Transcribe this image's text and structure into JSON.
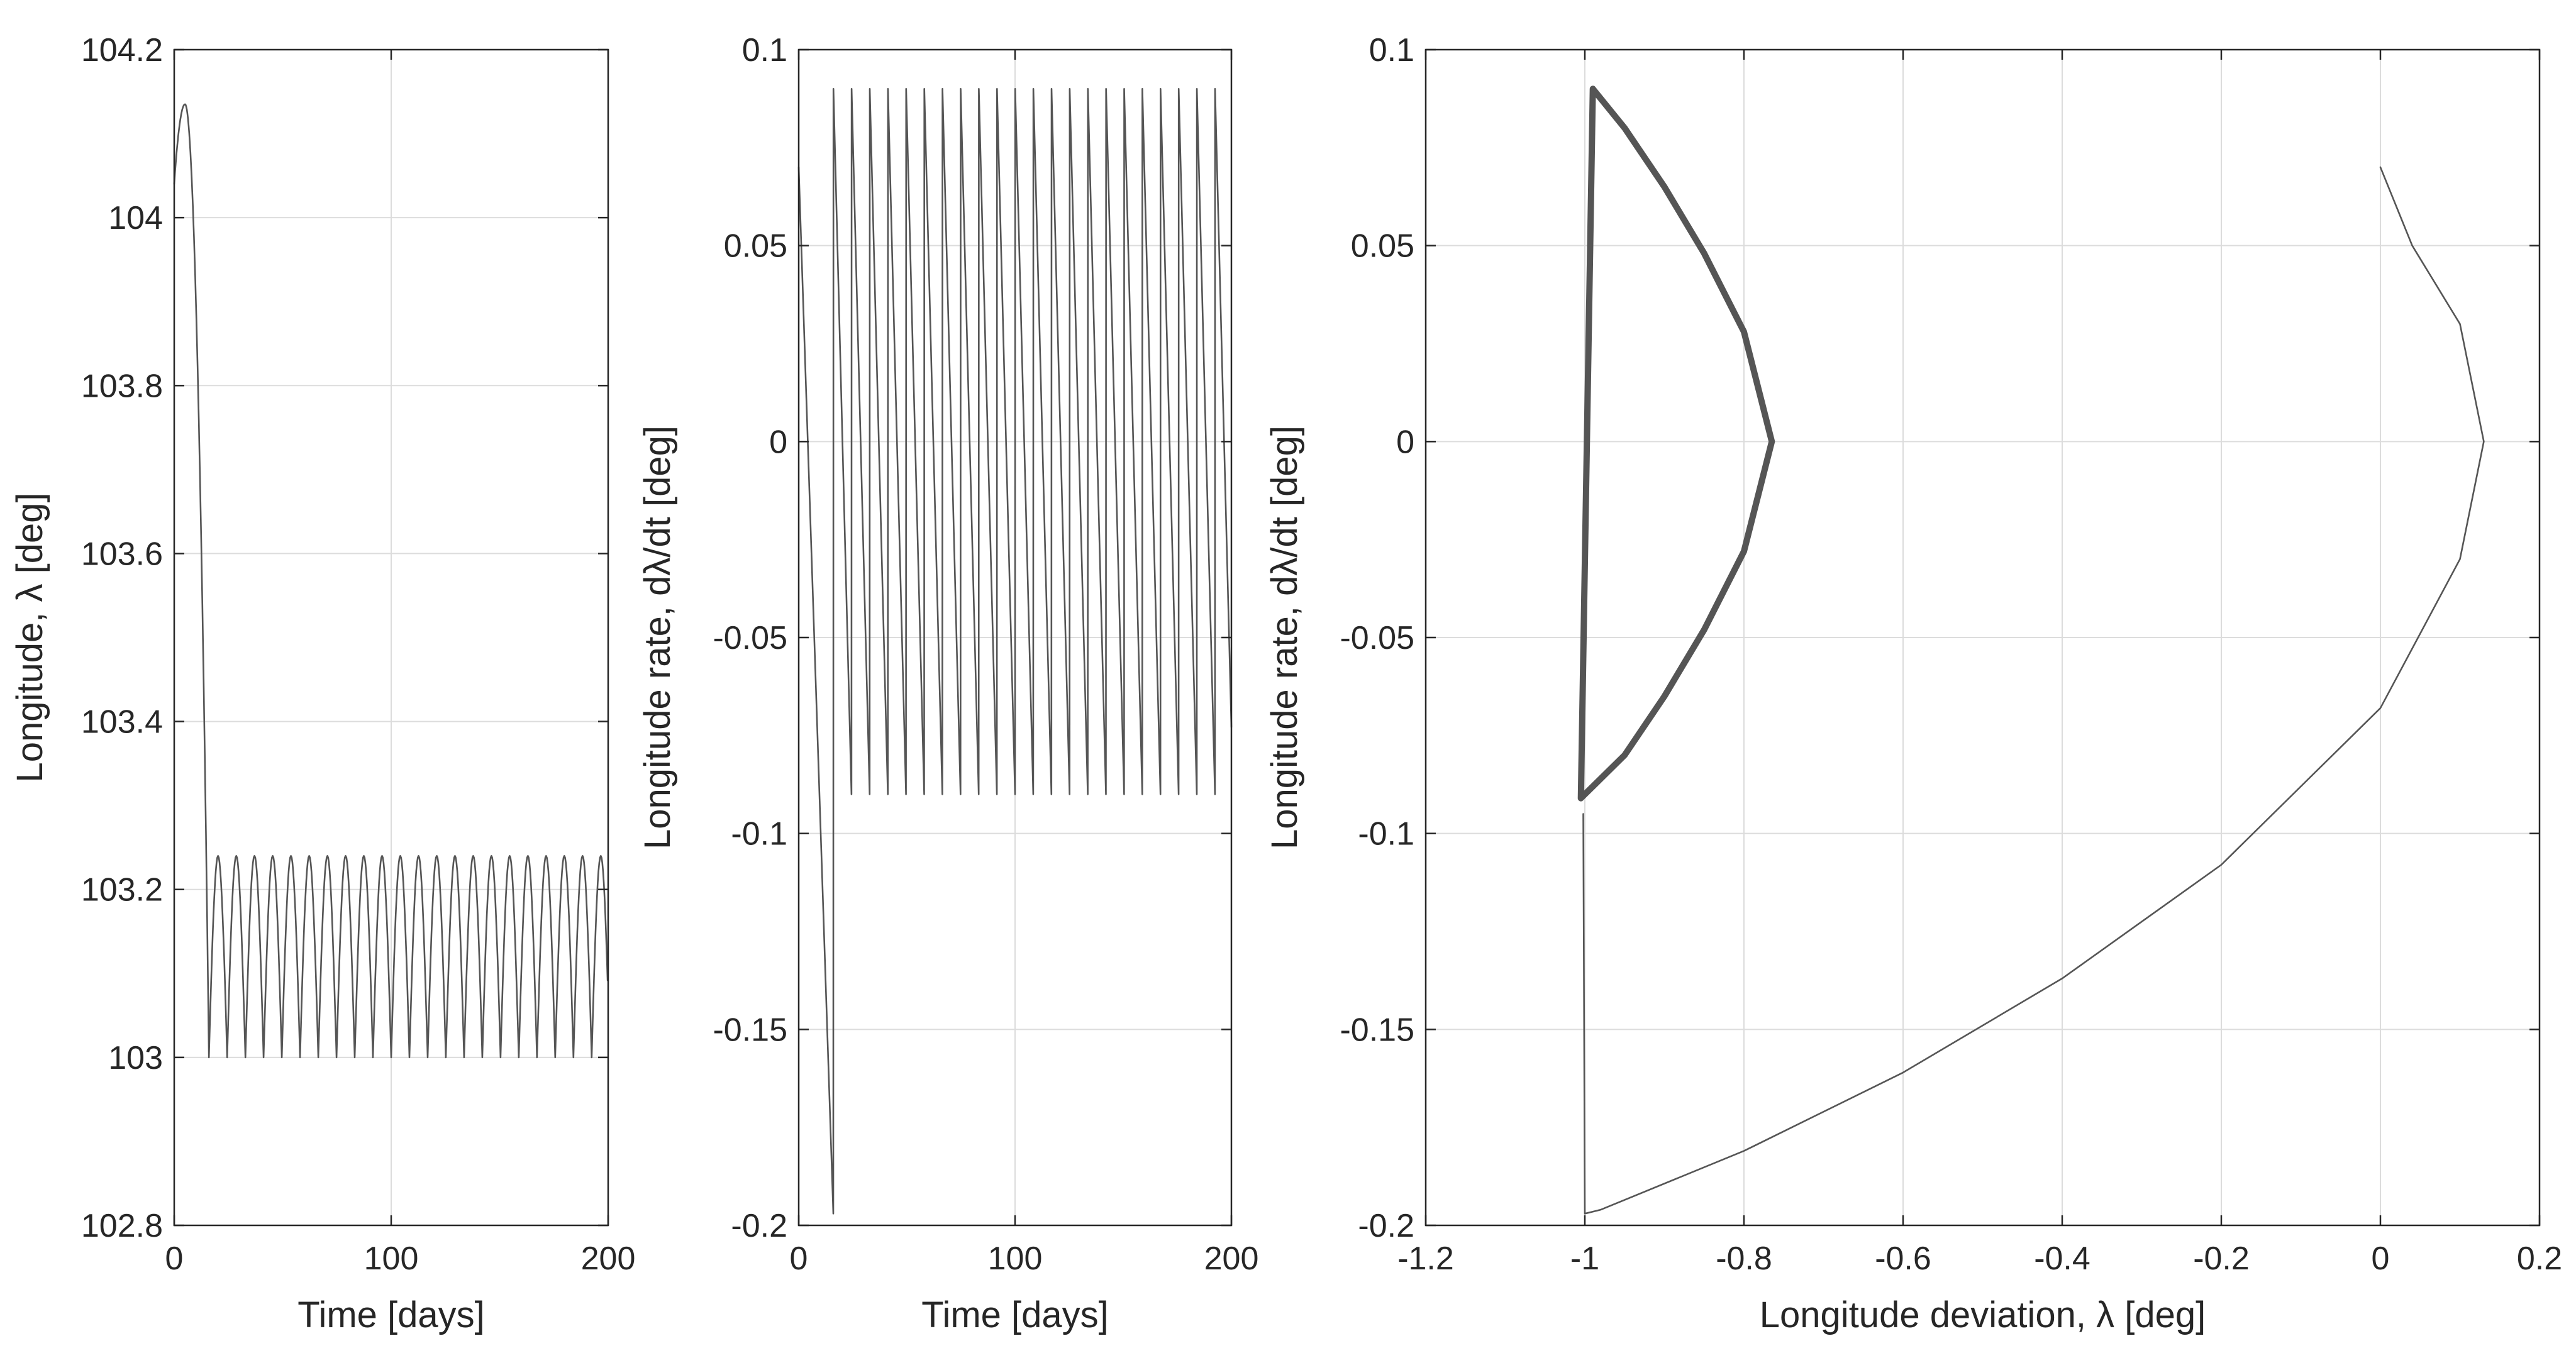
{
  "chart_data": [
    {
      "type": "line",
      "xlabel": "Time [days]",
      "ylabel": "Longitude, λ [deg]",
      "xlim": [
        0,
        200
      ],
      "ylim": [
        102.8,
        104.2
      ],
      "xticks": [
        0,
        100,
        200
      ],
      "xtick_labels": [
        "0",
        "100",
        "200"
      ],
      "yticks": [
        102.8,
        103,
        103.2,
        103.4,
        103.6,
        103.8,
        104,
        104.2
      ],
      "ytick_labels": [
        "102.8",
        "103",
        "103.2",
        "103.4",
        "103.6",
        "103.8",
        "104",
        "104.2"
      ],
      "grid": true,
      "line_color": "#555555",
      "series": [
        {
          "name": "longitude",
          "description": "initial arc from 104.04 peaking at 104.135 near day 5, dropping to 103.0 at day 16, then periodic arcs between 103.0 and 103.24 every ~8.4 days",
          "initial": {
            "t_start": 0,
            "lon_start": 104.04,
            "t_peak": 5,
            "lon_peak": 104.135,
            "t_end": 16,
            "lon_end": 103.0
          },
          "cycle": {
            "t_start": 16,
            "period": 8.4,
            "min": 103.0,
            "max": 103.24,
            "t_end": 200
          }
        }
      ]
    },
    {
      "type": "line",
      "xlabel": "Time [days]",
      "ylabel": "Longitude rate, dλ/dt [deg]",
      "xlim": [
        0,
        200
      ],
      "ylim": [
        -0.2,
        0.1
      ],
      "xticks": [
        0,
        100,
        200
      ],
      "xtick_labels": [
        "0",
        "100",
        "200"
      ],
      "yticks": [
        -0.2,
        -0.15,
        -0.1,
        -0.05,
        0,
        0.05,
        0.1
      ],
      "ytick_labels": [
        "-0.2",
        "-0.15",
        "-0.1",
        "-0.05",
        "0",
        "0.05",
        "0.1"
      ],
      "grid": true,
      "line_color": "#555555",
      "series": [
        {
          "name": "longitude rate",
          "description": "linear decrease from 0.07 at day 0 to -0.197 at day 16, then sawtooth between 0.09 and -0.09 every ~8.4 days",
          "initial": {
            "t_start": 0,
            "rate_start": 0.07,
            "t_end": 16,
            "rate_end": -0.197
          },
          "cycle": {
            "t_start": 16,
            "period": 8.4,
            "max": 0.09,
            "min": -0.09,
            "t_end": 200
          }
        }
      ]
    },
    {
      "type": "line",
      "xlabel": "Longitude deviation, λ [deg]",
      "ylabel": "Longitude rate, dλ/dt [deg]",
      "xlim": [
        -1.2,
        0.2
      ],
      "ylim": [
        -0.2,
        0.1
      ],
      "xticks": [
        -1.2,
        -1,
        -0.8,
        -0.6,
        -0.4,
        -0.2,
        0,
        0.2
      ],
      "xtick_labels": [
        "-1.2",
        "-1",
        "-0.8",
        "-0.6",
        "-0.4",
        "-0.2",
        "0",
        "0.2"
      ],
      "yticks": [
        -0.2,
        -0.15,
        -0.1,
        -0.05,
        0,
        0.05,
        0.1
      ],
      "ytick_labels": [
        "-0.2",
        "-0.15",
        "-0.1",
        "-0.05",
        "0",
        "0.05",
        "0.1"
      ],
      "grid": true,
      "line_color": "#555555",
      "series": [
        {
          "name": "initial transfer",
          "style": "thin",
          "points": [
            [
              0,
              0.07
            ],
            [
              0.04,
              0.05
            ],
            [
              0.1,
              0.03
            ],
            [
              0.13,
              0.0
            ],
            [
              0.1,
              -0.03
            ],
            [
              0.0,
              -0.068
            ],
            [
              -0.2,
              -0.108
            ],
            [
              -0.4,
              -0.137
            ],
            [
              -0.6,
              -0.161
            ],
            [
              -0.8,
              -0.181
            ],
            [
              -0.98,
              -0.196
            ],
            [
              -1.0,
              -0.197
            ],
            [
              -1.002,
              -0.095
            ]
          ]
        },
        {
          "name": "limit cycle",
          "style": "thick",
          "points": [
            [
              -1.005,
              -0.091
            ],
            [
              -0.99,
              0.09
            ],
            [
              -0.95,
              0.08
            ],
            [
              -0.9,
              0.065
            ],
            [
              -0.85,
              0.048
            ],
            [
              -0.8,
              0.028
            ],
            [
              -0.765,
              0.0
            ],
            [
              -0.8,
              -0.028
            ],
            [
              -0.85,
              -0.048
            ],
            [
              -0.9,
              -0.065
            ],
            [
              -0.95,
              -0.08
            ],
            [
              -1.005,
              -0.091
            ]
          ]
        }
      ]
    }
  ]
}
